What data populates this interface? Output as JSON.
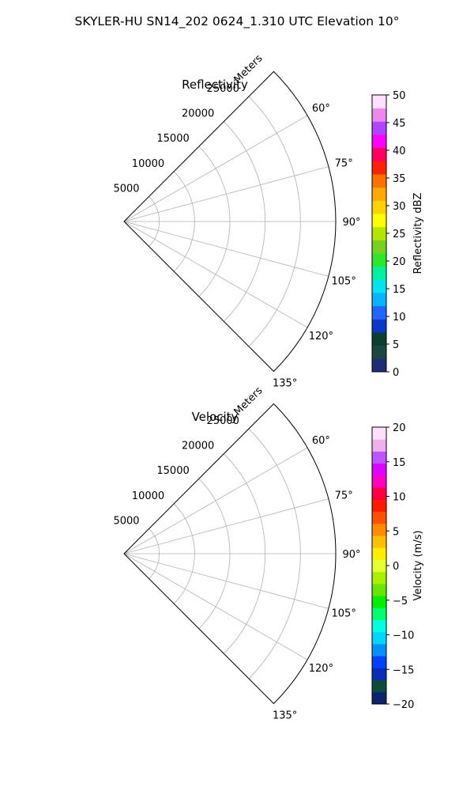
{
  "figure": {
    "title": "SKYLER-HU  SN14_202  0624_1.310 UTC Elevation 10°"
  },
  "chart_data": [
    {
      "type": "polar-sector",
      "title": "Reflectivity",
      "radial_axis_label": "Meters",
      "radial_ticks": [
        5000,
        10000,
        15000,
        20000,
        25000
      ],
      "radial_tick_labels": [
        "5000",
        "10000",
        "15000",
        "20000",
        "25000"
      ],
      "rlim": [
        0,
        30000
      ],
      "angle_ticks": [
        60,
        75,
        90,
        105,
        120,
        135
      ],
      "angle_tick_labels": [
        "60°",
        "75°",
        "90°",
        "105°",
        "120°",
        "135°"
      ],
      "theta_range_deg": [
        45,
        135
      ],
      "grid": true,
      "colorbar": {
        "label": "Reflectivity dBZ",
        "vmin": 0,
        "vmax": 50,
        "ticks": [
          0,
          5,
          10,
          15,
          20,
          25,
          30,
          35,
          40,
          45,
          50
        ],
        "tick_labels": [
          "0",
          "5",
          "10",
          "15",
          "20",
          "25",
          "30",
          "35",
          "40",
          "45",
          "50"
        ],
        "colors": [
          "#1e2d74",
          "#1c4741",
          "#0c3f30",
          "#0a38c8",
          "#1e66ff",
          "#06b4ff",
          "#00e5ee",
          "#00f0a0",
          "#2be82b",
          "#7ad11c",
          "#b3e600",
          "#ffff00",
          "#ffd200",
          "#ffa800",
          "#ff7000",
          "#ff2200",
          "#ff0060",
          "#ff00ff",
          "#b044ff",
          "#ee88ee",
          "#ffe0ff"
        ]
      }
    },
    {
      "type": "polar-sector",
      "title": "Velocity",
      "radial_axis_label": "Meters",
      "radial_ticks": [
        5000,
        10000,
        15000,
        20000,
        25000
      ],
      "radial_tick_labels": [
        "5000",
        "10000",
        "15000",
        "20000",
        "25000"
      ],
      "rlim": [
        0,
        30000
      ],
      "angle_ticks": [
        60,
        75,
        90,
        105,
        120,
        135
      ],
      "angle_tick_labels": [
        "60°",
        "75°",
        "90°",
        "105°",
        "120°",
        "135°"
      ],
      "theta_range_deg": [
        45,
        135
      ],
      "grid": true,
      "colorbar": {
        "label": "Velocity (m/s)",
        "vmin": -20,
        "vmax": 20,
        "ticks": [
          -20,
          -15,
          -10,
          -5,
          0,
          5,
          10,
          15,
          20
        ],
        "tick_labels": [
          "−20",
          "−15",
          "−10",
          "−5",
          "0",
          "5",
          "10",
          "15",
          "20"
        ],
        "colors": [
          "#0c2470",
          "#0e4b3c",
          "#0a2db8",
          "#0040ff",
          "#0093ff",
          "#00d7ff",
          "#00ffe0",
          "#00ff70",
          "#00f000",
          "#66e600",
          "#aaf000",
          "#e8ff30",
          "#ffee00",
          "#ffc000",
          "#ff8c00",
          "#ff5000",
          "#ff1a00",
          "#ff0040",
          "#ff00c0",
          "#e000ff",
          "#bb55ff",
          "#f0b0f0",
          "#ffe0ff"
        ]
      }
    }
  ]
}
